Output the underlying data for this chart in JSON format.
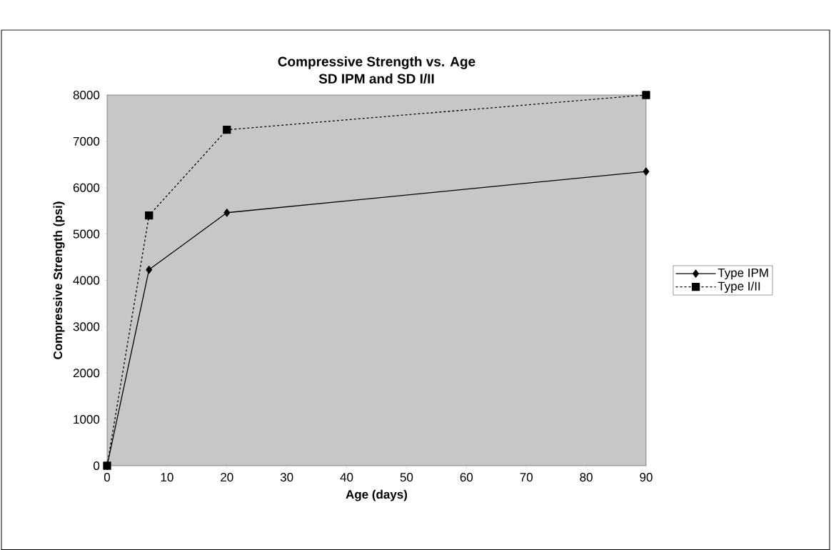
{
  "chart_data": {
    "type": "line",
    "title": "Compressive Strength vs. Age",
    "subtitle": "SD IPM and SD I/II",
    "xlabel": "Age (days)",
    "ylabel": "Compressive Strength (psi)",
    "series": [
      {
        "name": "Type IPM",
        "color": "#000000",
        "x": [
          0,
          7,
          20,
          90
        ],
        "values": [
          0,
          4230,
          5460,
          6350
        ],
        "marker": "diamond",
        "line_style": "solid"
      },
      {
        "name": "Type I/II",
        "color": "#000000",
        "x": [
          0,
          7,
          20,
          90
        ],
        "values": [
          0,
          5400,
          7250,
          8000
        ],
        "marker": "square",
        "line_style": "dotted"
      }
    ],
    "xlim": [
      0,
      90
    ],
    "ylim": [
      0,
      8000
    ],
    "xticks": [
      0,
      10,
      20,
      30,
      40,
      50,
      60,
      70,
      80,
      90
    ],
    "yticks": [
      0,
      1000,
      2000,
      3000,
      4000,
      5000,
      6000,
      7000,
      8000
    ],
    "grid": false,
    "legend": "right"
  }
}
